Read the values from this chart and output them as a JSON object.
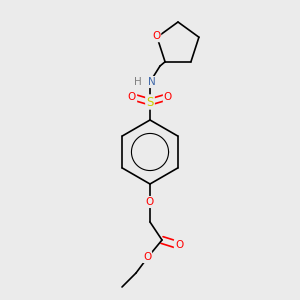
{
  "background_color": "#ebebeb",
  "atom_colors": {
    "O": "#ff0000",
    "N": "#4169aa",
    "S": "#cccc00",
    "C": "#000000",
    "H": "#808080"
  },
  "bond_color": "#000000",
  "bond_width": 1.2,
  "figsize": [
    3.0,
    3.0
  ],
  "dpi": 100
}
